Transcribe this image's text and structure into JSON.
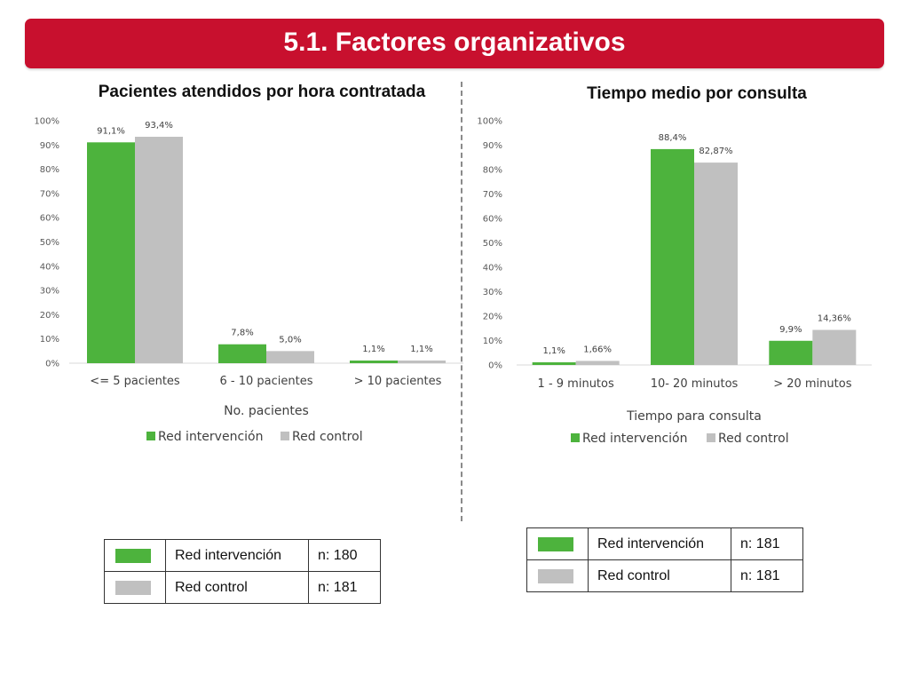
{
  "header": {
    "title": "5.1. Factores organizativos"
  },
  "colors": {
    "intervention": "#4db33d",
    "control": "#c0c0c0",
    "banner": "#c8102e"
  },
  "chart_data": [
    {
      "type": "bar",
      "title": "Pacientes atendidos por hora contratada",
      "categories": [
        "<= 5 pacientes",
        "6 - 10 pacientes",
        "> 10 pacientes"
      ],
      "series": [
        {
          "name": "Red intervención",
          "values": [
            91.1,
            7.8,
            1.1
          ],
          "labels": [
            "91,1%",
            "7,8%",
            "1,1%"
          ]
        },
        {
          "name": "Red control",
          "values": [
            93.4,
            5.0,
            1.1
          ],
          "labels": [
            "93,4%",
            "5,0%",
            "1,1%"
          ]
        }
      ],
      "xlabel": "No. pacientes",
      "ylabel": "",
      "ylim": [
        0,
        100
      ],
      "yticks": [
        "0%",
        "10%",
        "20%",
        "30%",
        "40%",
        "50%",
        "60%",
        "70%",
        "80%",
        "90%",
        "100%"
      ],
      "grid": false,
      "legend": "bottom"
    },
    {
      "type": "bar",
      "title": "Tiempo medio por consulta",
      "categories": [
        "1 - 9 minutos",
        "10- 20 minutos",
        "> 20 minutos"
      ],
      "series": [
        {
          "name": "Red intervención",
          "values": [
            1.1,
            88.4,
            9.9
          ],
          "labels": [
            "1,1%",
            "88,4%",
            "9,9%"
          ]
        },
        {
          "name": "Red control",
          "values": [
            1.66,
            82.87,
            14.36
          ],
          "labels": [
            "1,66%",
            "82,87%",
            "14,36%"
          ]
        }
      ],
      "xlabel": "Tiempo para consulta",
      "ylabel": "",
      "ylim": [
        0,
        100
      ],
      "yticks": [
        "0%",
        "10%",
        "20%",
        "30%",
        "40%",
        "50%",
        "60%",
        "70%",
        "80%",
        "90%",
        "100%"
      ],
      "grid": false,
      "legend": "bottom"
    }
  ],
  "sample_tables": [
    {
      "rows": [
        {
          "group": "Red intervención",
          "n": "n: 180"
        },
        {
          "group": "Red control",
          "n": "n: 181"
        }
      ]
    },
    {
      "rows": [
        {
          "group": "Red intervención",
          "n": "n: 181"
        },
        {
          "group": "Red control",
          "n": "n: 181"
        }
      ]
    }
  ]
}
